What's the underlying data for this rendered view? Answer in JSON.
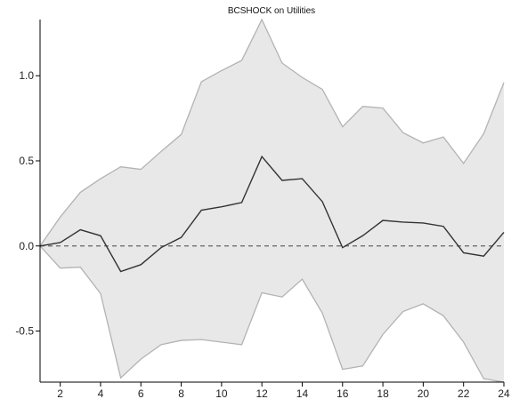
{
  "chart_data": {
    "type": "line",
    "title": "BCSHOCK on Utilities",
    "xlabel": "",
    "ylabel": "",
    "x": [
      1,
      2,
      3,
      4,
      5,
      6,
      7,
      8,
      9,
      10,
      11,
      12,
      13,
      14,
      15,
      16,
      17,
      18,
      19,
      20,
      21,
      22,
      23,
      24
    ],
    "xlim": [
      1,
      24
    ],
    "ylim": [
      -0.8,
      1.33
    ],
    "x_ticks": [
      2,
      4,
      6,
      8,
      10,
      12,
      14,
      16,
      18,
      20,
      22,
      24
    ],
    "x_tick_labels": [
      "2",
      "4",
      "6",
      "8",
      "10",
      "12",
      "14",
      "16",
      "18",
      "20",
      "22",
      "24"
    ],
    "y_ticks": [
      -0.5,
      0.0,
      0.5,
      1.0
    ],
    "y_tick_labels": [
      "-0.5",
      "0.0",
      "0.5",
      "1.0"
    ],
    "grid": false,
    "legend": "none",
    "zero_line": 0.0,
    "series": [
      {
        "role": "response",
        "color": "#333333",
        "values": [
          0.0,
          0.02,
          0.095,
          0.06,
          -0.15,
          -0.11,
          -0.01,
          0.05,
          0.21,
          0.23,
          0.255,
          0.525,
          0.385,
          0.395,
          0.26,
          -0.01,
          0.06,
          0.15,
          0.14,
          0.135,
          0.115,
          -0.04,
          -0.06,
          0.08
        ]
      },
      {
        "role": "upper-band",
        "color": "#b3b3b3",
        "values": [
          0.0,
          0.17,
          0.315,
          0.395,
          0.465,
          0.45,
          0.555,
          0.655,
          0.965,
          1.03,
          1.09,
          1.33,
          1.075,
          0.99,
          0.92,
          0.7,
          0.82,
          0.81,
          0.665,
          0.605,
          0.64,
          0.485,
          0.66,
          0.96
        ]
      },
      {
        "role": "lower-band",
        "color": "#b3b3b3",
        "values": [
          0.0,
          -0.13,
          -0.125,
          -0.28,
          -0.775,
          -0.665,
          -0.58,
          -0.555,
          -0.55,
          -0.565,
          -0.58,
          -0.275,
          -0.3,
          -0.195,
          -0.395,
          -0.725,
          -0.705,
          -0.52,
          -0.385,
          -0.34,
          -0.41,
          -0.565,
          -0.78,
          -0.8
        ]
      }
    ],
    "band_fill_color": "#e8e8e8",
    "axis_color": "#000000",
    "zero_line_color": "#666666"
  }
}
